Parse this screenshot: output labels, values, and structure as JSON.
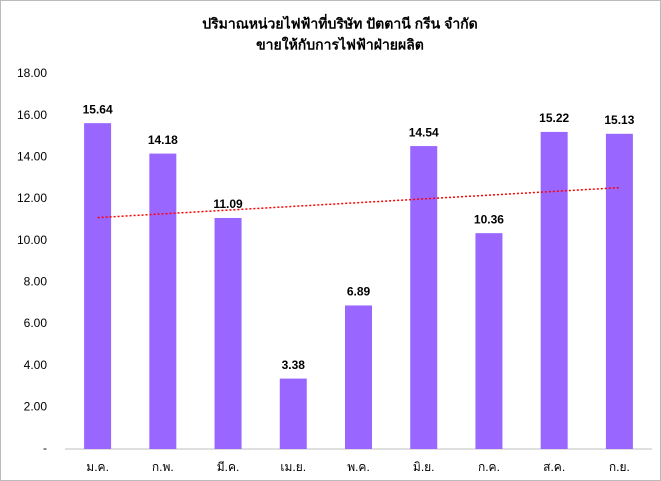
{
  "chart_data": {
    "type": "bar",
    "title": [
      "ปริมาณหน่วยไฟฟ้าที่บริษัท  ปัตตานี กรีน จำกัด",
      "ขายให้กับการไฟฟ้าฝ่ายผลิต"
    ],
    "categories": [
      "ม.ค.",
      "ก.พ.",
      "มี.ค.",
      "เม.ย.",
      "พ.ค.",
      "มิ.ย.",
      "ก.ค.",
      "ส.ค.",
      "ก.ย."
    ],
    "values": [
      15.64,
      14.18,
      11.09,
      3.38,
      6.89,
      14.54,
      10.36,
      15.22,
      15.13
    ],
    "color": "#9966ff",
    "ylim": [
      0,
      18
    ],
    "yticks": [
      {
        "value": 0,
        "label": "-"
      },
      {
        "value": 2,
        "label": "2.00"
      },
      {
        "value": 4,
        "label": "4.00"
      },
      {
        "value": 6,
        "label": "6.00"
      },
      {
        "value": 8,
        "label": "8.00"
      },
      {
        "value": 10,
        "label": "10.00"
      },
      {
        "value": 12,
        "label": "12.00"
      },
      {
        "value": 14,
        "label": "14.00"
      },
      {
        "value": 16,
        "label": "16.00"
      },
      {
        "value": 18,
        "label": "18.00"
      }
    ],
    "grid": false,
    "trendline": {
      "type": "linear",
      "color": "#ff0000"
    }
  }
}
